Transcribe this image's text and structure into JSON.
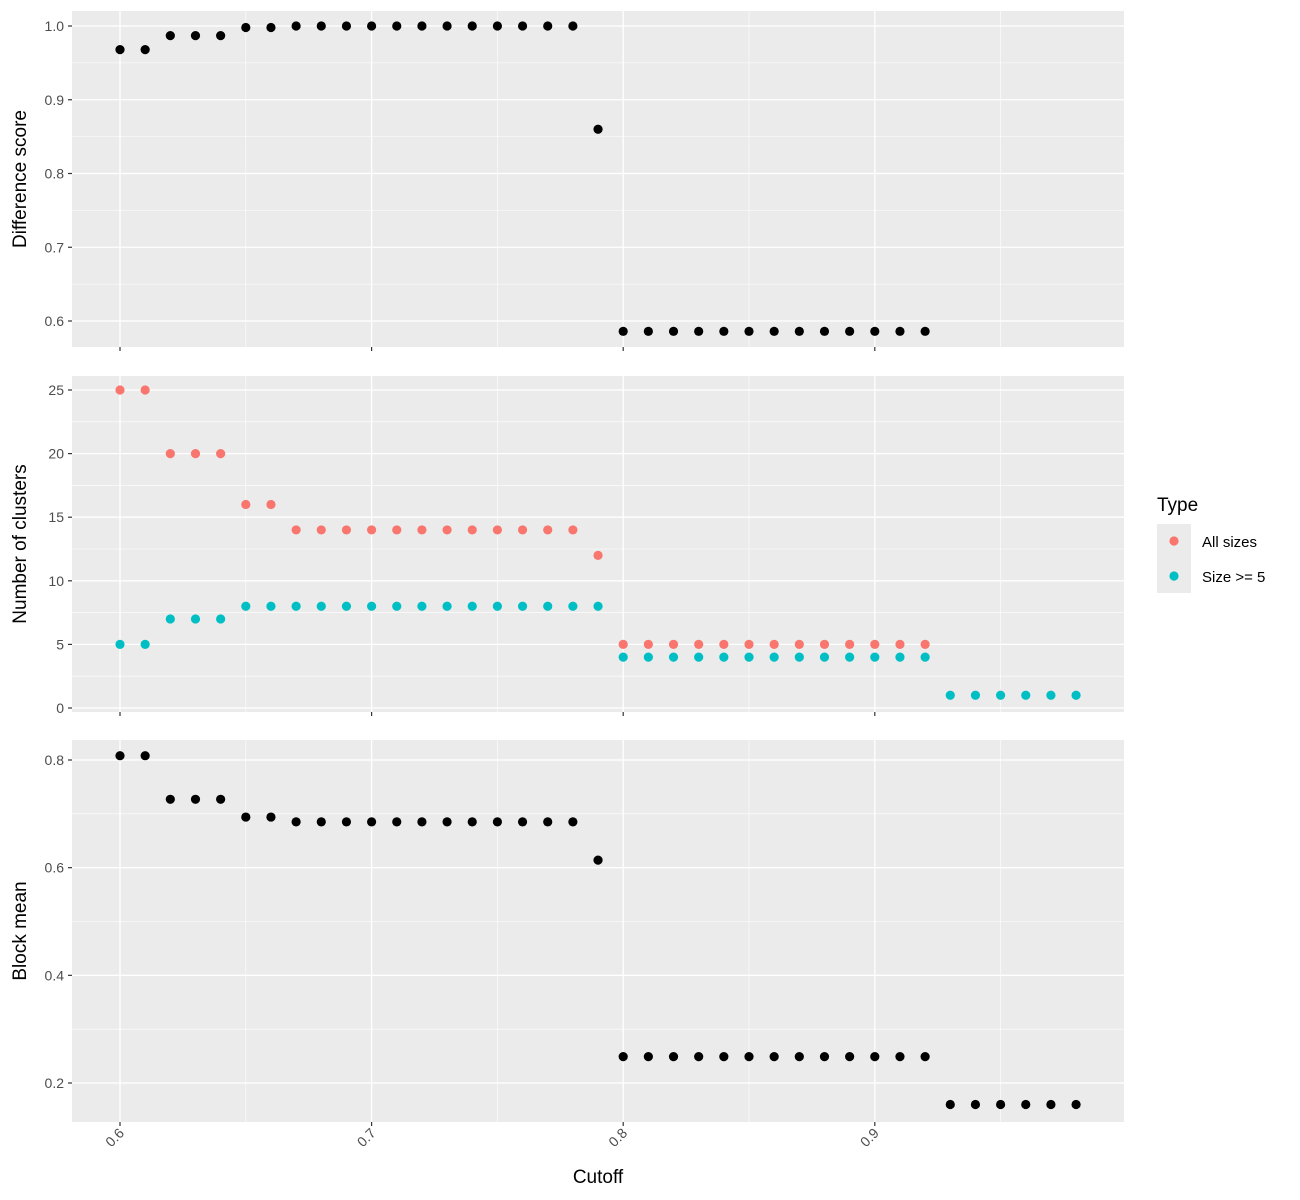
{
  "figure": {
    "xlabel": "Cutoff",
    "x_ticks": [
      0.6,
      0.7,
      0.8,
      0.9
    ],
    "x_tick_labels": [
      "0.6",
      "0.7",
      "0.8",
      "0.9"
    ],
    "panel_background": "#ebebeb",
    "grid_color": "#ffffff"
  },
  "legend": {
    "title": "Type",
    "position": "right",
    "items": [
      {
        "label": "All sizes",
        "color": "#f8766d"
      },
      {
        "label": "Size >= 5",
        "color": "#00bfc4"
      }
    ]
  },
  "chart_data": [
    {
      "type": "scatter",
      "title": "",
      "xlabel": "Cutoff",
      "ylabel": "Difference score",
      "grid": true,
      "yticks": [
        0.6,
        0.7,
        0.8,
        0.9,
        1.0
      ],
      "ytick_labels": [
        "0.6",
        "0.7",
        "0.8",
        "0.9",
        "1.0"
      ],
      "series": [
        {
          "color": "#000000",
          "x": [
            0.6,
            0.61,
            0.62,
            0.63,
            0.64,
            0.65,
            0.66,
            0.67,
            0.68,
            0.69,
            0.7,
            0.71,
            0.72,
            0.73,
            0.74,
            0.75,
            0.76,
            0.77,
            0.78,
            0.79,
            0.8,
            0.81,
            0.82,
            0.83,
            0.84,
            0.85,
            0.86,
            0.87,
            0.88,
            0.89,
            0.9,
            0.91,
            0.92
          ],
          "y": [
            0.968,
            0.968,
            0.987,
            0.987,
            0.987,
            0.998,
            0.998,
            1.0,
            1.0,
            1.0,
            1.0,
            1.0,
            1.0,
            1.0,
            1.0,
            1.0,
            1.0,
            1.0,
            1.0,
            0.86,
            0.586,
            0.586,
            0.586,
            0.586,
            0.586,
            0.586,
            0.586,
            0.586,
            0.586,
            0.586,
            0.586,
            0.586,
            0.586
          ]
        }
      ]
    },
    {
      "type": "scatter",
      "title": "",
      "xlabel": "Cutoff",
      "ylabel": "Number of clusters",
      "grid": true,
      "yticks": [
        0,
        5,
        10,
        15,
        20,
        25
      ],
      "ytick_labels": [
        "0",
        "5",
        "10",
        "15",
        "20",
        "25"
      ],
      "series": [
        {
          "name": "All sizes",
          "color": "#f8766d",
          "x": [
            0.6,
            0.61,
            0.62,
            0.63,
            0.64,
            0.65,
            0.66,
            0.67,
            0.68,
            0.69,
            0.7,
            0.71,
            0.72,
            0.73,
            0.74,
            0.75,
            0.76,
            0.77,
            0.78,
            0.79,
            0.8,
            0.81,
            0.82,
            0.83,
            0.84,
            0.85,
            0.86,
            0.87,
            0.88,
            0.89,
            0.9,
            0.91,
            0.92
          ],
          "y": [
            25,
            25,
            20,
            20,
            20,
            16,
            16,
            14,
            14,
            14,
            14,
            14,
            14,
            14,
            14,
            14,
            14,
            14,
            14,
            12,
            5,
            5,
            5,
            5,
            5,
            5,
            5,
            5,
            5,
            5,
            5,
            5,
            5
          ]
        },
        {
          "name": "Size >= 5",
          "color": "#00bfc4",
          "x": [
            0.6,
            0.61,
            0.62,
            0.63,
            0.64,
            0.65,
            0.66,
            0.67,
            0.68,
            0.69,
            0.7,
            0.71,
            0.72,
            0.73,
            0.74,
            0.75,
            0.76,
            0.77,
            0.78,
            0.79,
            0.8,
            0.81,
            0.82,
            0.83,
            0.84,
            0.85,
            0.86,
            0.87,
            0.88,
            0.89,
            0.9,
            0.91,
            0.92,
            0.93,
            0.94,
            0.95,
            0.96,
            0.97,
            0.98
          ],
          "y": [
            5,
            5,
            7,
            7,
            7,
            8,
            8,
            8,
            8,
            8,
            8,
            8,
            8,
            8,
            8,
            8,
            8,
            8,
            8,
            8,
            4,
            4,
            4,
            4,
            4,
            4,
            4,
            4,
            4,
            4,
            4,
            4,
            4,
            1,
            1,
            1,
            1,
            1,
            1
          ]
        }
      ]
    },
    {
      "type": "scatter",
      "title": "",
      "xlabel": "Cutoff",
      "ylabel": "Block mean",
      "grid": true,
      "yticks": [
        0.2,
        0.4,
        0.6,
        0.8
      ],
      "ytick_labels": [
        "0.2",
        "0.4",
        "0.6",
        "0.8"
      ],
      "series": [
        {
          "color": "#000000",
          "x": [
            0.6,
            0.61,
            0.62,
            0.63,
            0.64,
            0.65,
            0.66,
            0.67,
            0.68,
            0.69,
            0.7,
            0.71,
            0.72,
            0.73,
            0.74,
            0.75,
            0.76,
            0.77,
            0.78,
            0.79,
            0.8,
            0.81,
            0.82,
            0.83,
            0.84,
            0.85,
            0.86,
            0.87,
            0.88,
            0.89,
            0.9,
            0.91,
            0.92,
            0.93,
            0.94,
            0.95,
            0.96,
            0.97,
            0.98
          ],
          "y": [
            0.808,
            0.808,
            0.727,
            0.727,
            0.727,
            0.694,
            0.694,
            0.685,
            0.685,
            0.685,
            0.685,
            0.685,
            0.685,
            0.685,
            0.685,
            0.685,
            0.685,
            0.685,
            0.685,
            0.614,
            0.249,
            0.249,
            0.249,
            0.249,
            0.249,
            0.249,
            0.249,
            0.249,
            0.249,
            0.249,
            0.249,
            0.249,
            0.249,
            0.16,
            0.16,
            0.16,
            0.16,
            0.16,
            0.16
          ]
        }
      ]
    }
  ]
}
